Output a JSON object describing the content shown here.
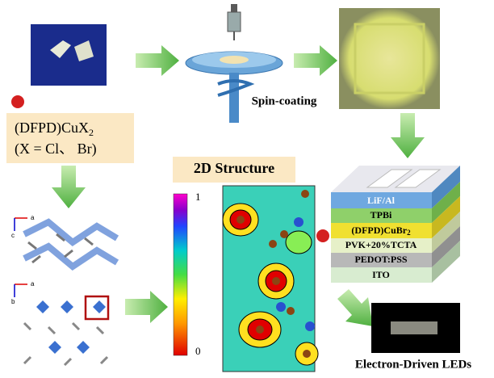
{
  "precursor": {
    "formula": {
      "main": "(DFPD)CuX",
      "sub": "2"
    },
    "halides": "(X = Cl、 Br)"
  },
  "process": "Spin-coating",
  "structure": {
    "title": "2D Structure",
    "colorbar_max": 1,
    "colorbar_min": 0,
    "axes": [
      "a",
      "c",
      "a",
      "b"
    ]
  },
  "device": {
    "layers": [
      "LiF/Al",
      "TPBi",
      {
        "main": "(DFPD)CuBr",
        "sub": "2"
      },
      "PVK+20%TCTA",
      "PEDOT:PSS",
      "ITO"
    ]
  },
  "output": "Electron-Driven LEDs"
}
